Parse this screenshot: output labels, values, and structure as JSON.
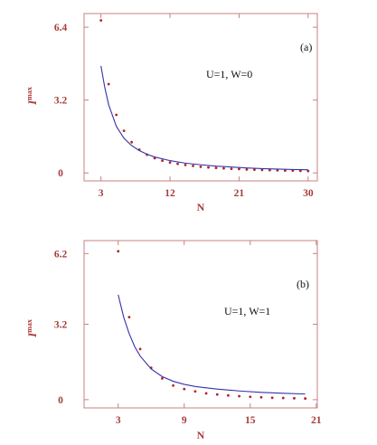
{
  "chart_data": [
    {
      "type": "scatter",
      "panel_label": "(a)",
      "annotation": "U=1, W=0",
      "xlabel": "N",
      "ylabel": "I",
      "ylabel_sup": "max",
      "xlim": [
        0.8,
        31.2
      ],
      "ylim": [
        -0.35,
        7.0
      ],
      "xticks": [
        3,
        12,
        21,
        30
      ],
      "yticks": [
        0,
        3.2,
        6.4
      ],
      "ytick_labels": [
        "0",
        "3.2",
        "6.4"
      ],
      "grid": false,
      "series": [
        {
          "kind": "points",
          "color": "#b22222",
          "x": [
            3,
            4,
            5,
            6,
            7,
            8,
            9,
            10,
            11,
            12,
            13,
            14,
            15,
            16,
            17,
            18,
            19,
            20,
            21,
            22,
            23,
            24,
            25,
            26,
            27,
            28,
            29,
            30
          ],
          "y": [
            6.7,
            3.9,
            2.55,
            1.85,
            1.35,
            1.02,
            0.8,
            0.65,
            0.54,
            0.46,
            0.4,
            0.35,
            0.31,
            0.27,
            0.24,
            0.22,
            0.2,
            0.18,
            0.17,
            0.15,
            0.14,
            0.13,
            0.12,
            0.11,
            0.1,
            0.1,
            0.09,
            0.08
          ]
        },
        {
          "kind": "curve",
          "color": "#3333aa",
          "x": [
            3,
            3.5,
            4,
            5,
            6,
            7,
            8,
            9,
            10,
            12,
            14,
            16,
            18,
            20,
            22,
            24,
            26,
            28,
            30
          ],
          "y": [
            4.7,
            3.75,
            3.0,
            2.05,
            1.52,
            1.2,
            0.98,
            0.82,
            0.7,
            0.54,
            0.43,
            0.36,
            0.3,
            0.26,
            0.22,
            0.19,
            0.17,
            0.15,
            0.14
          ]
        }
      ]
    },
    {
      "type": "scatter",
      "panel_label": "(b)",
      "annotation": "U=1, W=1",
      "xlabel": "N",
      "ylabel": "I",
      "ylabel_sup": "max",
      "xlim": [
        -0.1,
        21.1
      ],
      "ylim": [
        -0.35,
        6.75
      ],
      "xticks": [
        3,
        9,
        15,
        21
      ],
      "yticks": [
        0,
        3.2,
        6.2
      ],
      "ytick_labels": [
        "0",
        "3.2",
        "6.2"
      ],
      "grid": false,
      "series": [
        {
          "kind": "points",
          "color": "#b22222",
          "x": [
            3,
            4,
            5,
            6,
            7,
            8,
            9,
            10,
            11,
            12,
            13,
            14,
            15,
            16,
            17,
            18,
            19,
            20
          ],
          "y": [
            6.3,
            3.5,
            2.15,
            1.35,
            0.9,
            0.6,
            0.45,
            0.35,
            0.27,
            0.22,
            0.18,
            0.15,
            0.12,
            0.1,
            0.08,
            0.07,
            0.06,
            0.05
          ]
        },
        {
          "kind": "curve",
          "color": "#3333aa",
          "x": [
            3,
            3.5,
            4,
            4.5,
            5,
            6,
            7,
            8,
            9,
            10,
            11,
            12,
            14,
            16,
            18,
            20
          ],
          "y": [
            4.45,
            3.5,
            2.8,
            2.25,
            1.85,
            1.3,
            0.98,
            0.78,
            0.65,
            0.56,
            0.5,
            0.45,
            0.37,
            0.31,
            0.27,
            0.24
          ]
        }
      ]
    }
  ]
}
